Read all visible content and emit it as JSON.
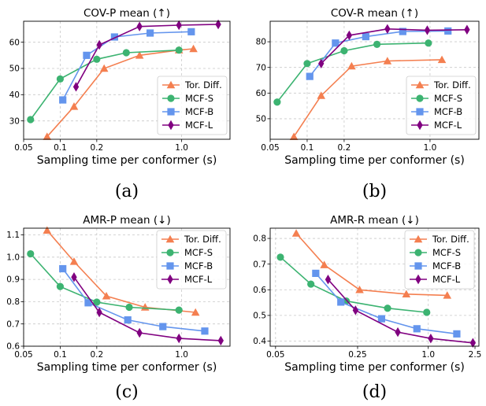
{
  "colors": {
    "tor_diff": "#f47f50",
    "mcf_s": "#3cb371",
    "mcf_b": "#6495ed",
    "mcf_l": "#800080"
  },
  "chart_data": [
    {
      "type": "line",
      "title": "COV-P mean (↑)",
      "xlabel": "Sampling time per conformer (s)",
      "ylabel": "",
      "caption": "(a)",
      "x_scale": "log",
      "xlim": [
        0.05,
        2.5
      ],
      "ylim": [
        23,
        68
      ],
      "xticks": [
        0.05,
        0.1,
        0.2,
        1.0
      ],
      "xtick_labels": [
        "0.05",
        "0.1",
        "0.2",
        "1.0"
      ],
      "yticks": [
        30,
        40,
        50,
        60
      ],
      "grid": true,
      "legend_position": "lower-right",
      "series": [
        {
          "name": "Tor. Diff.",
          "color_key": "tor_diff",
          "marker": "triangle",
          "x": [
            0.078,
            0.13,
            0.23,
            0.45,
            0.95,
            1.25
          ],
          "y": [
            24.0,
            35.5,
            50.0,
            55.0,
            57.0,
            57.5
          ]
        },
        {
          "name": "MCF-S",
          "color_key": "mcf_s",
          "marker": "circle",
          "x": [
            0.057,
            0.1,
            0.2,
            0.35,
            0.95
          ],
          "y": [
            30.5,
            46.0,
            53.5,
            56.0,
            57.0
          ]
        },
        {
          "name": "MCF-B",
          "color_key": "mcf_b",
          "marker": "square",
          "x": [
            0.105,
            0.165,
            0.28,
            0.55,
            1.2
          ],
          "y": [
            38.0,
            55.0,
            62.0,
            63.5,
            64.0
          ]
        },
        {
          "name": "MCF-L",
          "color_key": "mcf_l",
          "marker": "diamond",
          "x": [
            0.135,
            0.21,
            0.45,
            0.95,
            2.0
          ],
          "y": [
            43.0,
            59.0,
            66.0,
            66.5,
            66.8
          ]
        }
      ]
    },
    {
      "type": "line",
      "title": "COV-R mean (↑)",
      "xlabel": "Sampling time per conformer (s)",
      "ylabel": "",
      "caption": "(b)",
      "x_scale": "log",
      "xlim": [
        0.05,
        2.5
      ],
      "ylim": [
        42,
        88
      ],
      "xticks": [
        0.05,
        0.1,
        0.2,
        1.0
      ],
      "xtick_labels": [
        "0.05",
        "0.1",
        "0.2",
        "1.0"
      ],
      "yticks": [
        50,
        60,
        70,
        80
      ],
      "grid": true,
      "legend_position": "lower-right",
      "series": [
        {
          "name": "Tor. Diff.",
          "color_key": "tor_diff",
          "marker": "triangle",
          "x": [
            0.078,
            0.13,
            0.23,
            0.45,
            1.25
          ],
          "y": [
            43.0,
            59.0,
            70.5,
            72.5,
            73.0
          ]
        },
        {
          "name": "MCF-S",
          "color_key": "mcf_s",
          "marker": "circle",
          "x": [
            0.057,
            0.1,
            0.2,
            0.37,
            0.97
          ],
          "y": [
            56.5,
            71.5,
            76.5,
            79.0,
            79.5
          ]
        },
        {
          "name": "MCF-B",
          "color_key": "mcf_b",
          "marker": "square",
          "x": [
            0.105,
            0.17,
            0.3,
            0.6,
            1.4
          ],
          "y": [
            66.5,
            79.5,
            82.0,
            84.0,
            84.2
          ]
        },
        {
          "name": "MCF-L",
          "color_key": "mcf_l",
          "marker": "diamond",
          "x": [
            0.13,
            0.22,
            0.45,
            0.95,
            2.0
          ],
          "y": [
            71.5,
            82.5,
            85.0,
            84.5,
            84.7
          ]
        }
      ]
    },
    {
      "type": "line",
      "title": "AMR-P mean (↓)",
      "xlabel": "Sampling time per conformer (s)",
      "ylabel": "",
      "caption": "(c)",
      "x_scale": "log",
      "xlim": [
        0.05,
        2.5
      ],
      "ylim": [
        0.6,
        1.13
      ],
      "xticks": [
        0.05,
        0.1,
        0.2,
        1.0
      ],
      "xtick_labels": [
        "0.05",
        "0.1",
        "0.2",
        "1.0"
      ],
      "yticks": [
        0.6,
        0.7,
        0.8,
        0.9,
        1.0,
        1.1
      ],
      "ytick_labels": [
        "0.6",
        "0.7",
        "0.8",
        "0.9",
        "1.0",
        "1.1"
      ],
      "grid": true,
      "legend_position": "upper-right",
      "series": [
        {
          "name": "Tor. Diff.",
          "color_key": "tor_diff",
          "marker": "triangle",
          "x": [
            0.078,
            0.13,
            0.24,
            0.5,
            1.3
          ],
          "y": [
            1.12,
            0.98,
            0.825,
            0.775,
            0.752
          ]
        },
        {
          "name": "MCF-S",
          "color_key": "mcf_s",
          "marker": "circle",
          "x": [
            0.057,
            0.1,
            0.2,
            0.37,
            0.95
          ],
          "y": [
            1.015,
            0.868,
            0.798,
            0.775,
            0.762
          ]
        },
        {
          "name": "MCF-B",
          "color_key": "mcf_b",
          "marker": "square",
          "x": [
            0.105,
            0.17,
            0.36,
            0.7,
            1.55
          ],
          "y": [
            0.948,
            0.795,
            0.718,
            0.688,
            0.668
          ]
        },
        {
          "name": "MCF-L",
          "color_key": "mcf_l",
          "marker": "diamond",
          "x": [
            0.13,
            0.21,
            0.45,
            0.95,
            2.1
          ],
          "y": [
            0.91,
            0.752,
            0.66,
            0.635,
            0.625
          ]
        }
      ]
    },
    {
      "type": "line",
      "title": "AMR-R mean (↓)",
      "xlabel": "Sampling time per conformer (s)",
      "ylabel": "",
      "caption": "(d)",
      "x_scale": "log",
      "xlim": [
        0.045,
        2.7
      ],
      "ylim": [
        0.38,
        0.84
      ],
      "xticks": [
        0.05,
        0.25,
        1.0,
        2.5
      ],
      "xtick_labels": [
        "0.05",
        "0.25",
        "1.0",
        "2.5"
      ],
      "yticks": [
        0.4,
        0.5,
        0.6,
        0.7,
        0.8
      ],
      "ytick_labels": [
        "0.4",
        "0.5",
        "0.6",
        "0.7",
        "0.8"
      ],
      "grid": true,
      "legend_position": "upper-right",
      "series": [
        {
          "name": "Tor. Diff.",
          "color_key": "tor_diff",
          "marker": "triangle",
          "x": [
            0.075,
            0.13,
            0.26,
            0.65,
            1.45
          ],
          "y": [
            0.82,
            0.697,
            0.6,
            0.583,
            0.578
          ]
        },
        {
          "name": "MCF-S",
          "color_key": "mcf_s",
          "marker": "circle",
          "x": [
            0.055,
            0.1,
            0.2,
            0.45,
            0.97
          ],
          "y": [
            0.727,
            0.622,
            0.556,
            0.528,
            0.512
          ]
        },
        {
          "name": "MCF-B",
          "color_key": "mcf_b",
          "marker": "square",
          "x": [
            0.11,
            0.18,
            0.4,
            0.8,
            1.75
          ],
          "y": [
            0.664,
            0.552,
            0.487,
            0.448,
            0.428
          ]
        },
        {
          "name": "MCF-L",
          "color_key": "mcf_l",
          "marker": "diamond",
          "x": [
            0.14,
            0.24,
            0.55,
            1.05,
            2.4
          ],
          "y": [
            0.64,
            0.52,
            0.435,
            0.41,
            0.393
          ]
        }
      ]
    }
  ]
}
